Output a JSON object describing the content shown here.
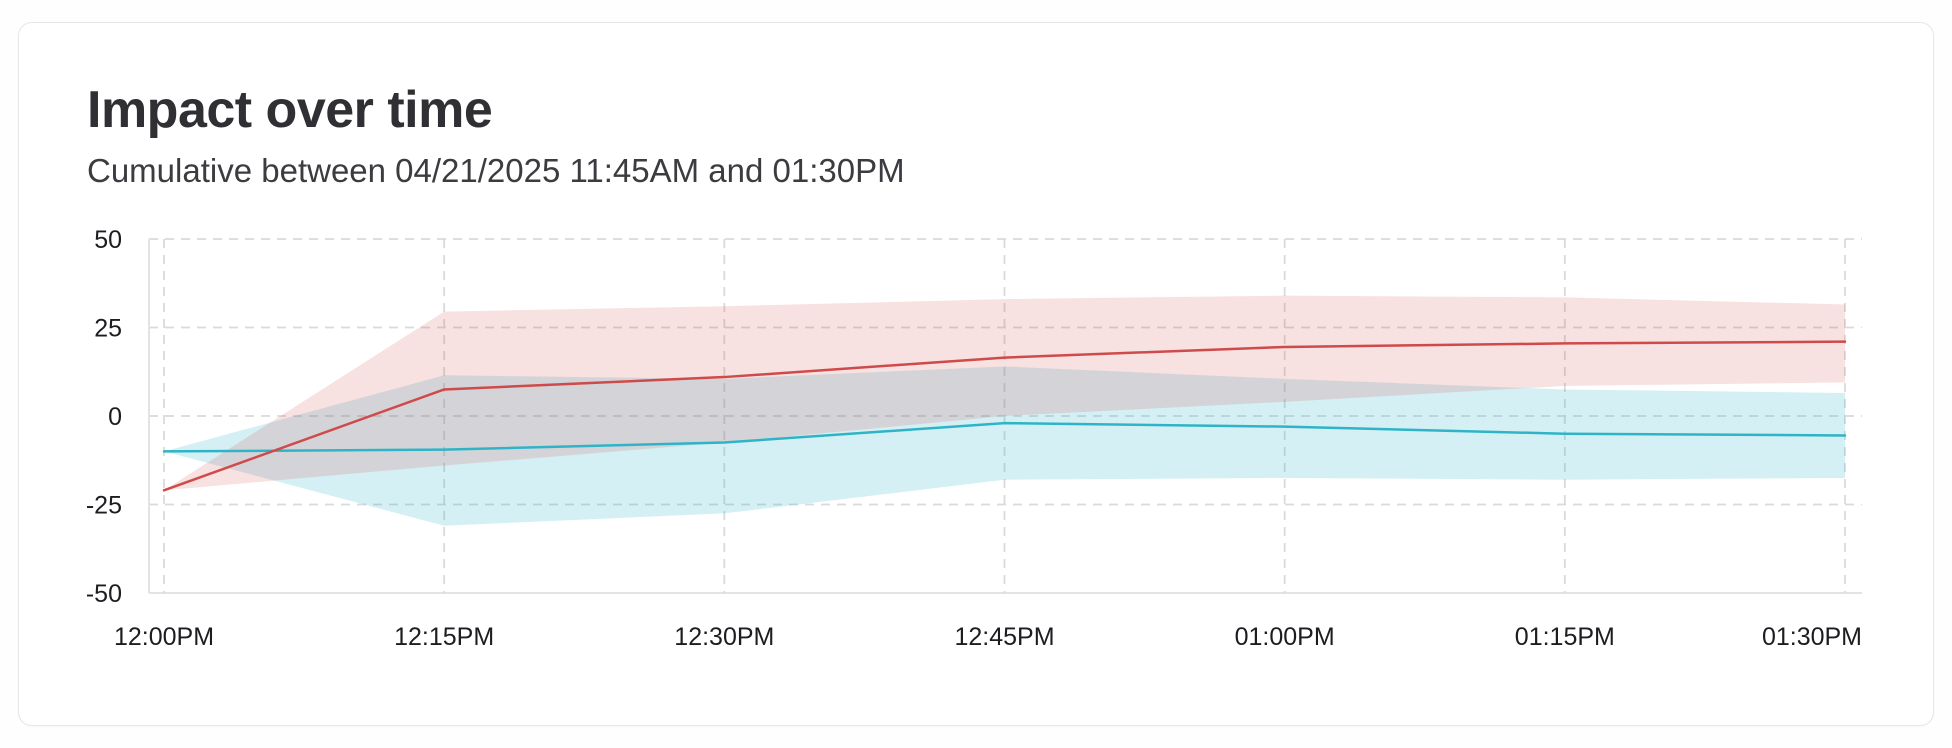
{
  "header": {
    "title": "Impact over time",
    "subtitle": "Cumulative between 04/21/2025 11:45AM and 01:30PM"
  },
  "colors": {
    "red_line": "#cf4b4b",
    "teal_line": "#2fb4c7",
    "red_band": "rgba(207,75,75,0.17)",
    "teal_band": "rgba(47,180,199,0.20)",
    "gridline": "#dadada",
    "axis_line": "#e3e3e5",
    "tick_text": "#1d1d21"
  },
  "chart_data": {
    "type": "line",
    "title": "Impact over time",
    "subtitle": "Cumulative between 04/21/2025 11:45AM and 01:30PM",
    "x": [
      "12:00PM",
      "12:15PM",
      "12:30PM",
      "12:45PM",
      "01:00PM",
      "01:15PM",
      "01:30PM"
    ],
    "xlabel": "",
    "ylabel": "",
    "ylim": [
      -50,
      50
    ],
    "yticks": [
      50,
      25,
      0,
      -25,
      -50
    ],
    "grid": "dashed",
    "legend": "none",
    "series": [
      {
        "name": "teal-series",
        "color": "#2fb4c7",
        "band_color": "rgba(47,180,199,0.20)",
        "values": [
          -10,
          -9.5,
          -7.5,
          -2,
          -3,
          -5,
          -5.5
        ],
        "band_low": [
          -10,
          -31,
          -27.5,
          -18,
          -17.5,
          -18,
          -17.5
        ],
        "band_high": [
          -10,
          11.5,
          10.5,
          14,
          10.5,
          7.5,
          6.5
        ]
      },
      {
        "name": "red-series",
        "color": "#cf4b4b",
        "band_color": "rgba(207,75,75,0.17)",
        "values": [
          -21,
          7.5,
          11,
          16.5,
          19.5,
          20.5,
          21
        ],
        "band_low": [
          -21,
          -14,
          -7.5,
          0,
          4,
          8.5,
          9.5
        ],
        "band_high": [
          -21,
          29.5,
          31,
          33,
          34,
          33.5,
          31.5
        ]
      }
    ]
  }
}
